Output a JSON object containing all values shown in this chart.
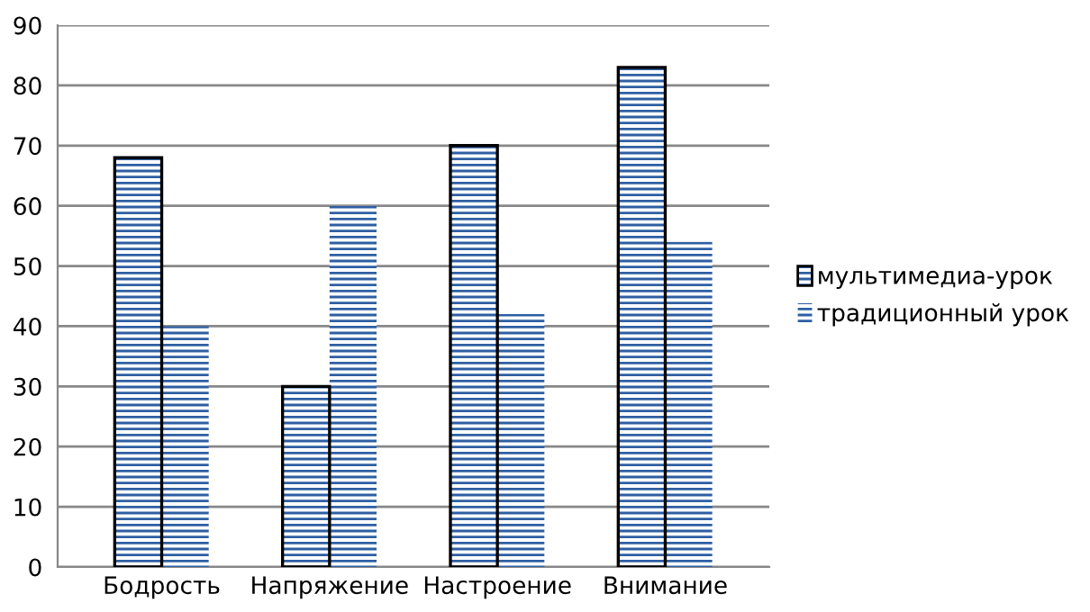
{
  "chart_data": {
    "type": "bar",
    "categories": [
      "Бодрость",
      "Напряжение",
      "Настроение",
      "Внимание"
    ],
    "series": [
      {
        "name": "мультимедиа-урок",
        "color": "#2e5fa3",
        "values": [
          68,
          30,
          70,
          83
        ]
      },
      {
        "name": "традиционный урок",
        "color": "#2e5fa3",
        "values": [
          40,
          60,
          42,
          54
        ]
      }
    ],
    "ylim": [
      0,
      90
    ],
    "yticks": [
      0,
      10,
      20,
      30,
      40,
      50,
      60,
      70,
      80,
      90
    ],
    "grid": "y",
    "legend": "right"
  }
}
